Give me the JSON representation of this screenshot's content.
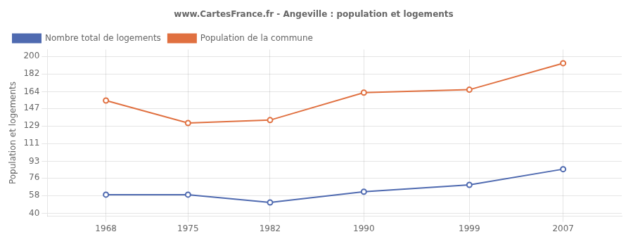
{
  "chart_data": {
    "type": "line",
    "title": "www.CartesFrance.fr - Angeville : population et logements",
    "ylabel": "Population et logements",
    "x": [
      1968,
      1975,
      1982,
      1990,
      1999,
      2007
    ],
    "series": [
      {
        "name": "Nombre total de logements",
        "color": "#4f6ab0",
        "marker": "circle",
        "values": [
          59,
          59,
          51,
          62,
          69,
          85
        ]
      },
      {
        "name": "Population de la commune",
        "color": "#e07040",
        "marker": "circle",
        "values": [
          155,
          132,
          135,
          163,
          166,
          193
        ]
      }
    ],
    "xlim": [
      1963,
      2012
    ],
    "xticks": [
      1968,
      1975,
      1982,
      1990,
      1999,
      2007
    ],
    "ylim": [
      37,
      207
    ],
    "yticks": [
      40,
      58,
      76,
      93,
      111,
      129,
      147,
      164,
      182,
      200
    ],
    "grid": true,
    "legend": "upper left"
  }
}
